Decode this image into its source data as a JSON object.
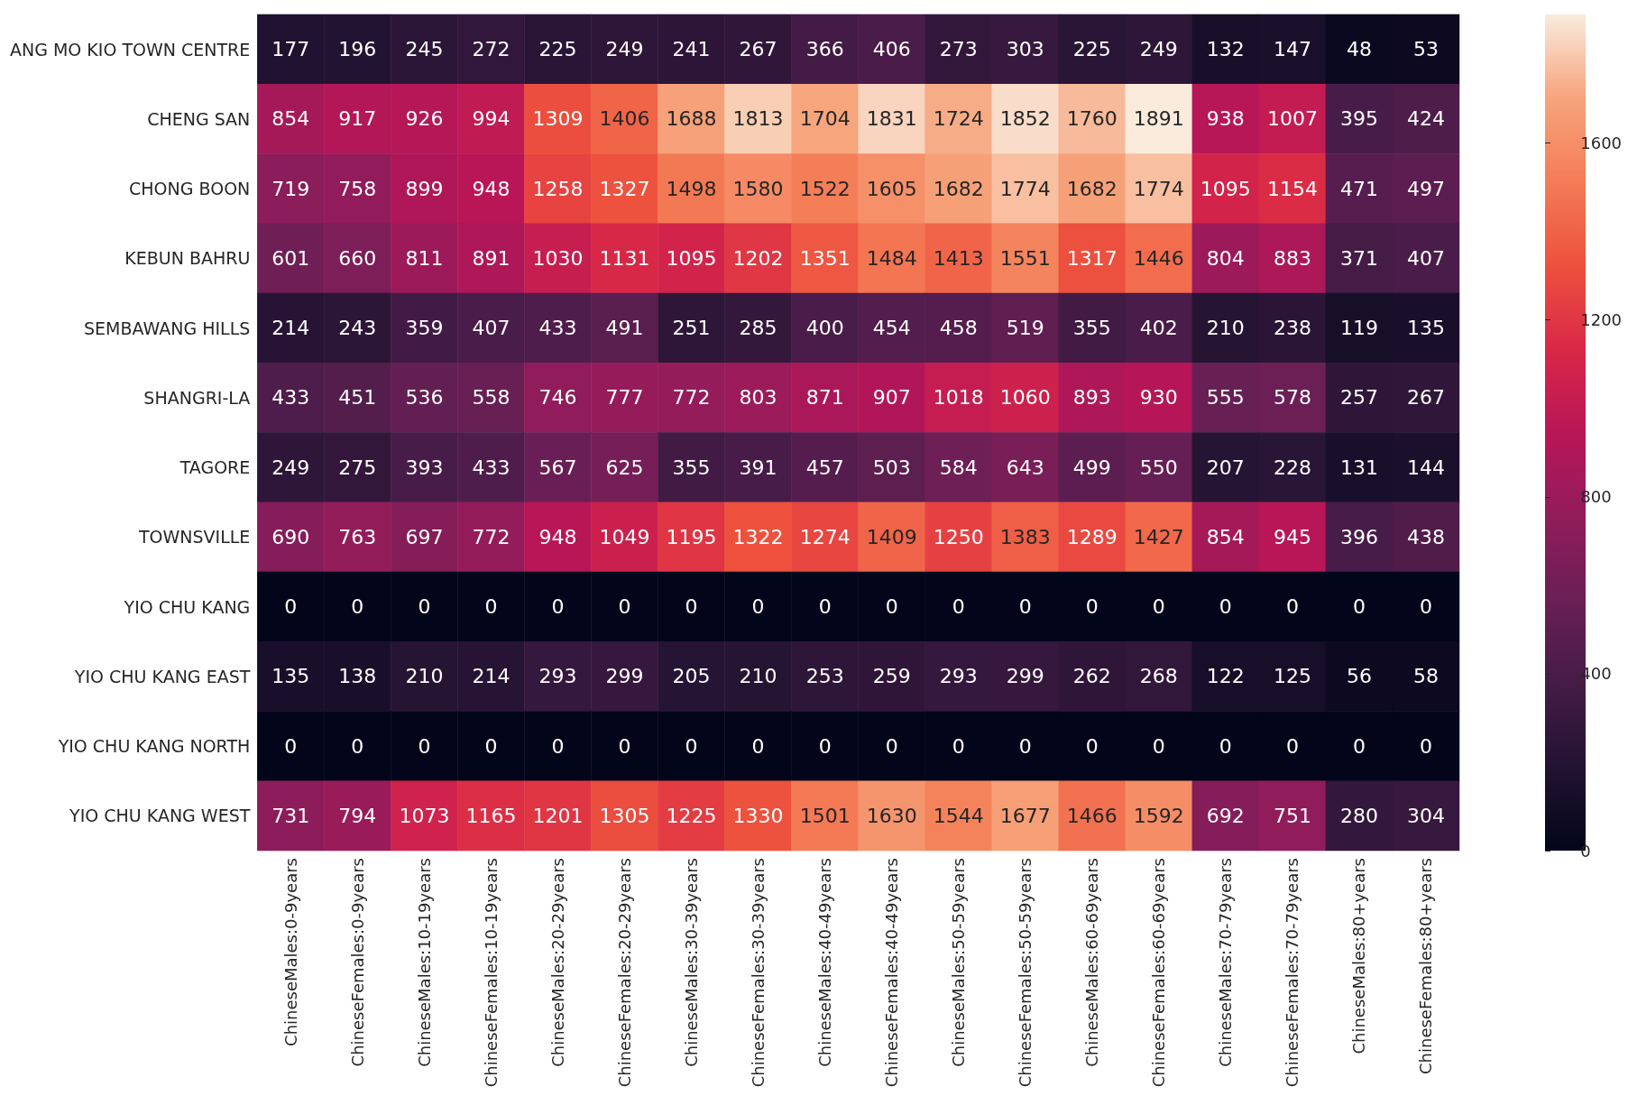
{
  "chart_data": {
    "type": "heatmap",
    "categories": [
      "ChineseMales:0-9years",
      "ChineseFemales:0-9years",
      "ChineseMales:10-19years",
      "ChineseFemales:10-19years",
      "ChineseMales:20-29years",
      "ChineseFemales:20-29years",
      "ChineseMales:30-39years",
      "ChineseFemales:30-39years",
      "ChineseMales:40-49years",
      "ChineseFemales:40-49years",
      "ChineseMales:50-59years",
      "ChineseFemales:50-59years",
      "ChineseMales:60-69years",
      "ChineseFemales:60-69years",
      "ChineseMales:70-79years",
      "ChineseFemales:70-79years",
      "ChineseMales:80+years",
      "ChineseFemales:80+years"
    ],
    "y_categories": [
      "ANG MO KIO TOWN CENTRE",
      "CHENG SAN",
      "CHONG BOON",
      "KEBUN BAHRU",
      "SEMBAWANG HILLS",
      "SHANGRI-LA",
      "TAGORE",
      "TOWNSVILLE",
      "YIO CHU KANG",
      "YIO CHU KANG EAST",
      "YIO CHU KANG NORTH",
      "YIO CHU KANG WEST"
    ],
    "cells": [
      [
        177,
        196,
        245,
        272,
        225,
        249,
        241,
        267,
        366,
        406,
        273,
        303,
        225,
        249,
        132,
        147,
        48,
        53
      ],
      [
        854,
        917,
        926,
        994,
        1309,
        1406,
        1688,
        1813,
        1704,
        1831,
        1724,
        1852,
        1760,
        1891,
        938,
        1007,
        395,
        424
      ],
      [
        719,
        758,
        899,
        948,
        1258,
        1327,
        1498,
        1580,
        1522,
        1605,
        1682,
        1774,
        1682,
        1774,
        1095,
        1154,
        471,
        497
      ],
      [
        601,
        660,
        811,
        891,
        1030,
        1131,
        1095,
        1202,
        1351,
        1484,
        1413,
        1551,
        1317,
        1446,
        804,
        883,
        371,
        407
      ],
      [
        214,
        243,
        359,
        407,
        433,
        491,
        251,
        285,
        400,
        454,
        458,
        519,
        355,
        402,
        210,
        238,
        119,
        135
      ],
      [
        433,
        451,
        536,
        558,
        746,
        777,
        772,
        803,
        871,
        907,
        1018,
        1060,
        893,
        930,
        555,
        578,
        257,
        267
      ],
      [
        249,
        275,
        393,
        433,
        567,
        625,
        355,
        391,
        457,
        503,
        584,
        643,
        499,
        550,
        207,
        228,
        131,
        144
      ],
      [
        690,
        763,
        697,
        772,
        948,
        1049,
        1195,
        1322,
        1274,
        1409,
        1250,
        1383,
        1289,
        1427,
        854,
        945,
        396,
        438
      ],
      [
        0,
        0,
        0,
        0,
        0,
        0,
        0,
        0,
        0,
        0,
        0,
        0,
        0,
        0,
        0,
        0,
        0,
        0
      ],
      [
        135,
        138,
        210,
        214,
        293,
        299,
        205,
        210,
        253,
        259,
        293,
        299,
        262,
        268,
        122,
        125,
        56,
        58
      ],
      [
        0,
        0,
        0,
        0,
        0,
        0,
        0,
        0,
        0,
        0,
        0,
        0,
        0,
        0,
        0,
        0,
        0,
        0
      ],
      [
        731,
        794,
        1073,
        1165,
        1201,
        1305,
        1225,
        1330,
        1501,
        1630,
        1544,
        1677,
        1466,
        1592,
        692,
        751,
        280,
        304
      ]
    ],
    "clim": [
      0,
      1891
    ],
    "cticks": [
      0,
      400,
      800,
      1200,
      1600
    ],
    "data_labels": true
  }
}
